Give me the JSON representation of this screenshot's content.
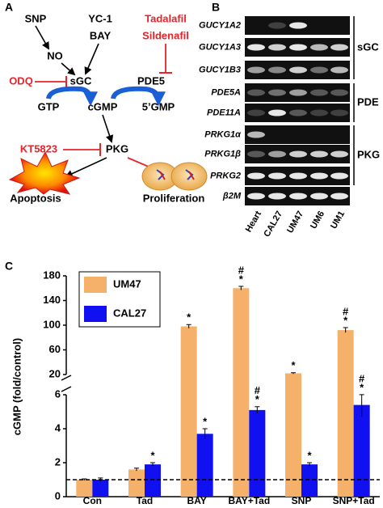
{
  "panel_a": {
    "letter": "A",
    "nodes": [
      "SNP",
      "YC-1",
      "BAY",
      "Tadalafil",
      "Sildenafil",
      "NO",
      "ODQ",
      "sGC",
      "PDE5",
      "GTP",
      "cGMP",
      "5’GMP",
      "KT5823",
      "PKG",
      "Apoptosis",
      "Proliferation"
    ]
  },
  "panel_b": {
    "letter": "B",
    "genes": [
      "GUCY1A2",
      "GUCY1A3",
      "GUCY1B3",
      "PDE5A",
      "PDE11A",
      "PRKG1α",
      "PRKG1β",
      "PRKG2",
      "β2M"
    ],
    "groups": [
      "sGC",
      "PDE",
      "PKG"
    ],
    "lanes": [
      "Heart",
      "CAL27",
      "UM47",
      "UM6",
      "UM1"
    ]
  },
  "panel_letter_c": "C",
  "chart_data": {
    "type": "bar",
    "y_label": "cGMP (fold/control)",
    "categories": [
      "Con",
      "Tad",
      "BAY",
      "BAY+Tad",
      "SNP",
      "SNP+Tad"
    ],
    "series": [
      {
        "name": "UM47",
        "color": "#f5b06a",
        "values": [
          1,
          1.6,
          98,
          160,
          22,
          92
        ],
        "errors": [
          0.05,
          0.08,
          3,
          3,
          1,
          4
        ],
        "markers": [
          null,
          null,
          [
            "*"
          ],
          [
            "#",
            "*"
          ],
          [
            "*"
          ],
          [
            "#",
            "*"
          ]
        ]
      },
      {
        "name": "CAL27",
        "color": "#1010f0",
        "values": [
          1,
          1.9,
          3.7,
          5.1,
          1.9,
          5.4
        ],
        "errors": [
          0.1,
          0.1,
          0.3,
          0.2,
          0.1,
          0.7
        ],
        "markers": [
          null,
          [
            "*"
          ],
          [
            "*"
          ],
          [
            "#",
            "*"
          ],
          [
            "*"
          ],
          [
            "#",
            "*"
          ]
        ]
      }
    ],
    "y_segments": [
      {
        "ylim": [
          0,
          6
        ],
        "yticks": [
          0,
          2,
          4,
          6
        ]
      },
      {
        "ylim": [
          20,
          180
        ],
        "yticks": [
          20,
          60,
          100,
          140,
          180
        ]
      }
    ],
    "ref_line": 1,
    "legend": "upper-left"
  }
}
